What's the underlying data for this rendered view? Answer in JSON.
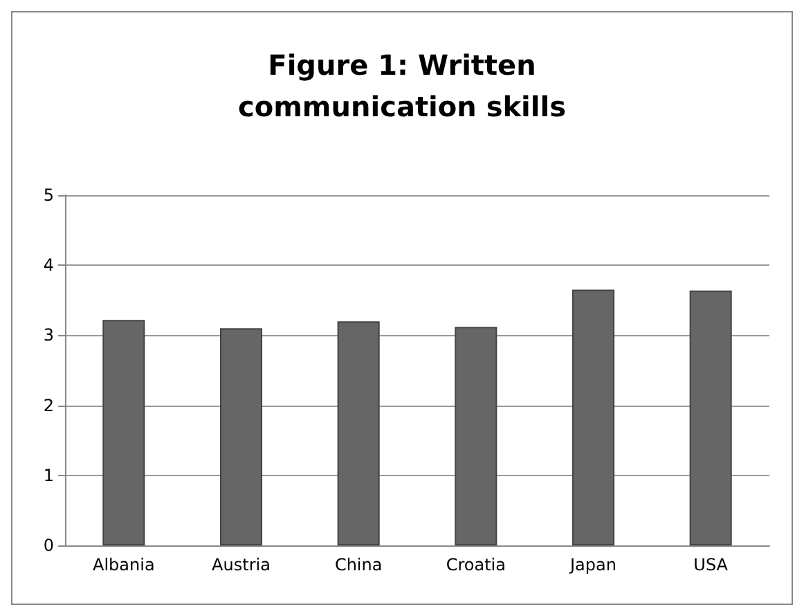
{
  "chart_data": {
    "type": "bar",
    "title": "Figure 1: Written\ncommunication skills",
    "categories": [
      "Albania",
      "Austria",
      "China",
      "Croatia",
      "Japan",
      "USA"
    ],
    "values": [
      3.22,
      3.1,
      3.2,
      3.12,
      3.65,
      3.64
    ],
    "color": "#666666",
    "ylim": [
      0,
      5
    ],
    "yticks": [
      0,
      1,
      2,
      3,
      4,
      5
    ],
    "grid": "y"
  }
}
